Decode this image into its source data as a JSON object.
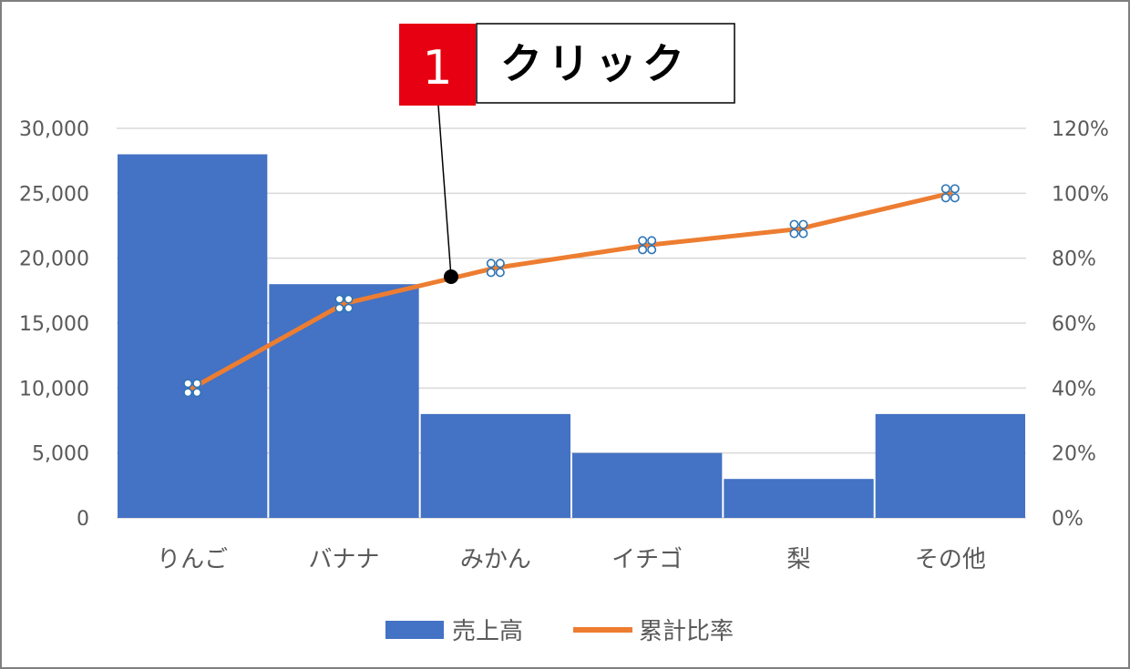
{
  "chart_data": {
    "type": "bar",
    "categories": [
      "りんご",
      "バナナ",
      "みかん",
      "イチゴ",
      "梨",
      "その他"
    ],
    "series": [
      {
        "name": "売上高",
        "type": "bar",
        "axis": "left",
        "color": "#4472c4",
        "values": [
          28000,
          18000,
          8000,
          5000,
          3000,
          8000
        ]
      },
      {
        "name": "累計比率",
        "type": "line",
        "axis": "right",
        "color": "#ed7d31",
        "values": [
          40,
          66,
          77,
          84,
          89,
          100
        ]
      }
    ],
    "y_left": {
      "min": 0,
      "max": 30000,
      "ticks": [
        "0",
        "5,000",
        "10,000",
        "15,000",
        "20,000",
        "25,000",
        "30,000"
      ]
    },
    "y_right": {
      "min": 0,
      "max": 120,
      "ticks": [
        "0%",
        "20%",
        "40%",
        "60%",
        "80%",
        "100%",
        "120%"
      ]
    },
    "grid": true,
    "legend": "bottom",
    "selected_series": "累計比率"
  },
  "callout": {
    "number": "1",
    "text": "クリック",
    "number_bg": "#e60012",
    "text_bg": "#ffffff"
  },
  "colors": {
    "gridline": "#d9d9d9",
    "axis_text": "#595959",
    "selection_handle": "#2e75b6"
  }
}
